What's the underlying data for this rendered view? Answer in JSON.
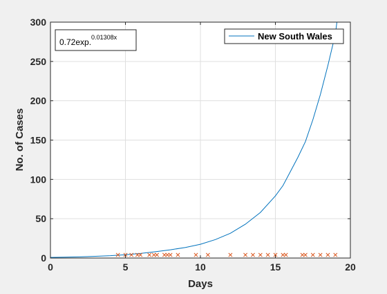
{
  "chart_data": {
    "type": "line",
    "title": "",
    "xlabel": "Days",
    "ylabel": "No. of Cases",
    "xlim": [
      0,
      20
    ],
    "ylim": [
      0,
      300
    ],
    "xticks": [
      0,
      5,
      10,
      15,
      20
    ],
    "yticks": [
      0,
      50,
      100,
      150,
      200,
      250,
      300
    ],
    "xtick_labels": [
      "0",
      "5",
      "10",
      "15",
      "20"
    ],
    "ytick_labels": [
      "0",
      "50",
      "100",
      "150",
      "200",
      "250",
      "300"
    ],
    "grid": true,
    "legend_position": "top-right",
    "annotation": {
      "base": "0.72exp.",
      "exponent": "0.01308x"
    },
    "series": [
      {
        "name": "New South Wales",
        "kind": "line",
        "color": "#0072bd",
        "x": [
          0,
          1,
          2,
          3,
          4,
          5,
          6,
          7,
          8,
          9,
          10,
          11,
          12,
          13,
          14,
          15,
          15.5,
          16,
          16.5,
          17,
          17.5,
          18,
          18.5,
          19,
          19.1
        ],
        "y": [
          0.8,
          1.1,
          1.6,
          2.2,
          3.0,
          4.2,
          5.8,
          8.0,
          10.5,
          13.5,
          17.5,
          23.5,
          31.5,
          43,
          58,
          79,
          92,
          110,
          128,
          148,
          176,
          208,
          245,
          285,
          300
        ]
      },
      {
        "name": "",
        "kind": "scatter",
        "marker": "x",
        "color": "#d95319",
        "x": [
          4.5,
          5.0,
          5.4,
          5.8,
          6.0,
          6.6,
          6.9,
          7.1,
          7.6,
          7.8,
          8.0,
          8.5,
          9.7,
          10.5,
          12.0,
          13.0,
          13.5,
          14.0,
          14.5,
          15.0,
          15.5,
          15.7,
          16.8,
          17.0,
          17.5,
          18.0,
          18.5,
          19.0
        ],
        "y": [
          4,
          4,
          4,
          4,
          4,
          4,
          4,
          4,
          4,
          4,
          4,
          4,
          4,
          4,
          4,
          4,
          4,
          4,
          4,
          4,
          4,
          4,
          4,
          4,
          4,
          4,
          4,
          4
        ]
      }
    ]
  }
}
